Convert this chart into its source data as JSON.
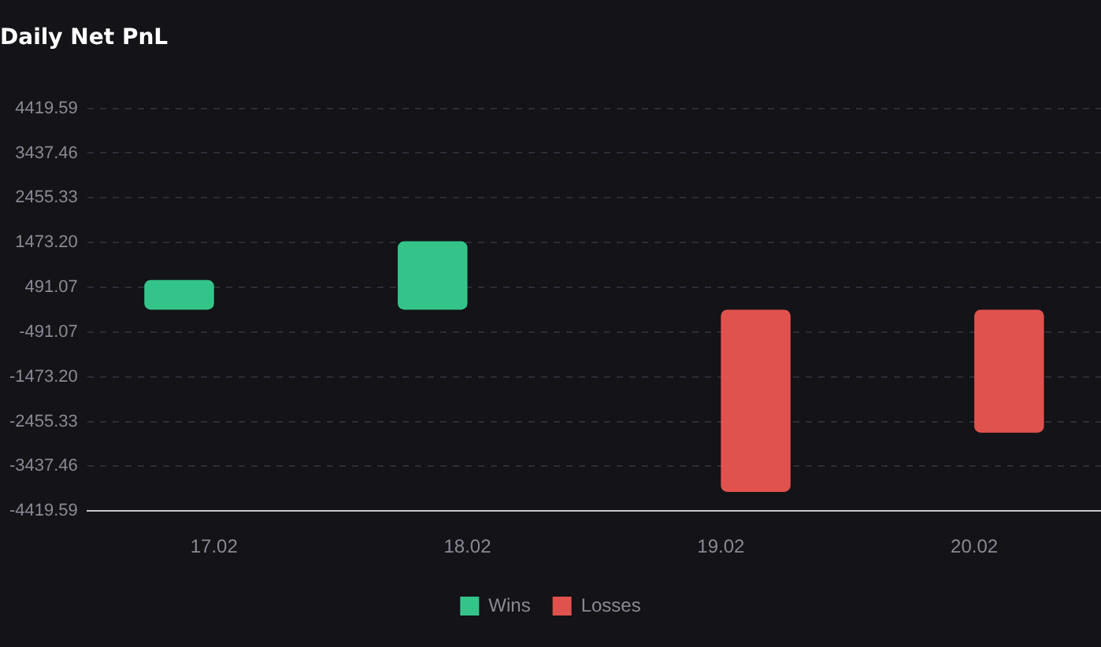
{
  "chart_data": {
    "type": "bar",
    "title": "Daily Net PnL",
    "categories": [
      "17.02",
      "18.02",
      "19.02",
      "20.02"
    ],
    "series": [
      {
        "name": "Wins",
        "color": "#34c48a",
        "values": [
          650,
          1500,
          null,
          null
        ]
      },
      {
        "name": "Losses",
        "color": "#e0524e",
        "values": [
          null,
          null,
          -4000,
          -2700
        ]
      }
    ],
    "ylim": [
      -4419.59,
      4419.59
    ],
    "yticks": [
      -4419.59,
      -3437.46,
      -2455.33,
      {
        "value": -1473.2,
        "label": "-1473.20"
      },
      -491.07,
      491.07,
      {
        "value": 1473.2,
        "label": "1473.20"
      },
      2455.33,
      3437.46,
      4419.59
    ],
    "grid": "y",
    "legend": "bottom"
  }
}
